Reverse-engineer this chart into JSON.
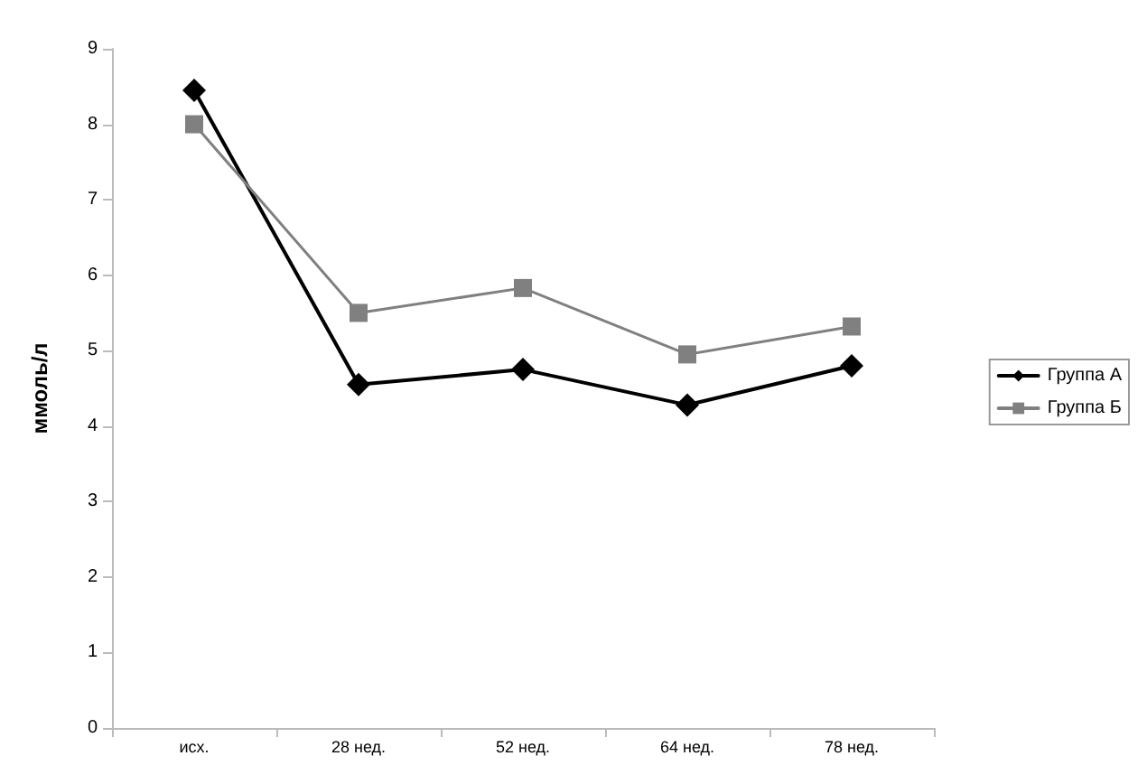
{
  "chart_data": {
    "type": "line",
    "ylabel": "ммоль/л",
    "categories": [
      "исх.",
      "28 нед.",
      "52 нед.",
      "64 нед.",
      "78 нед."
    ],
    "series": [
      {
        "name": "Группа А",
        "color": "#000000",
        "marker": "diamond",
        "values": [
          8.45,
          4.55,
          4.75,
          4.28,
          4.8
        ]
      },
      {
        "name": "Группа Б",
        "color": "#808080",
        "marker": "square",
        "values": [
          8.0,
          5.5,
          5.83,
          4.95,
          5.32
        ]
      }
    ],
    "ylim": [
      0,
      9
    ],
    "yticks": [
      0,
      1,
      2,
      3,
      4,
      5,
      6,
      7,
      8,
      9
    ],
    "grid": false,
    "legend": "right",
    "line_style": "solid"
  }
}
